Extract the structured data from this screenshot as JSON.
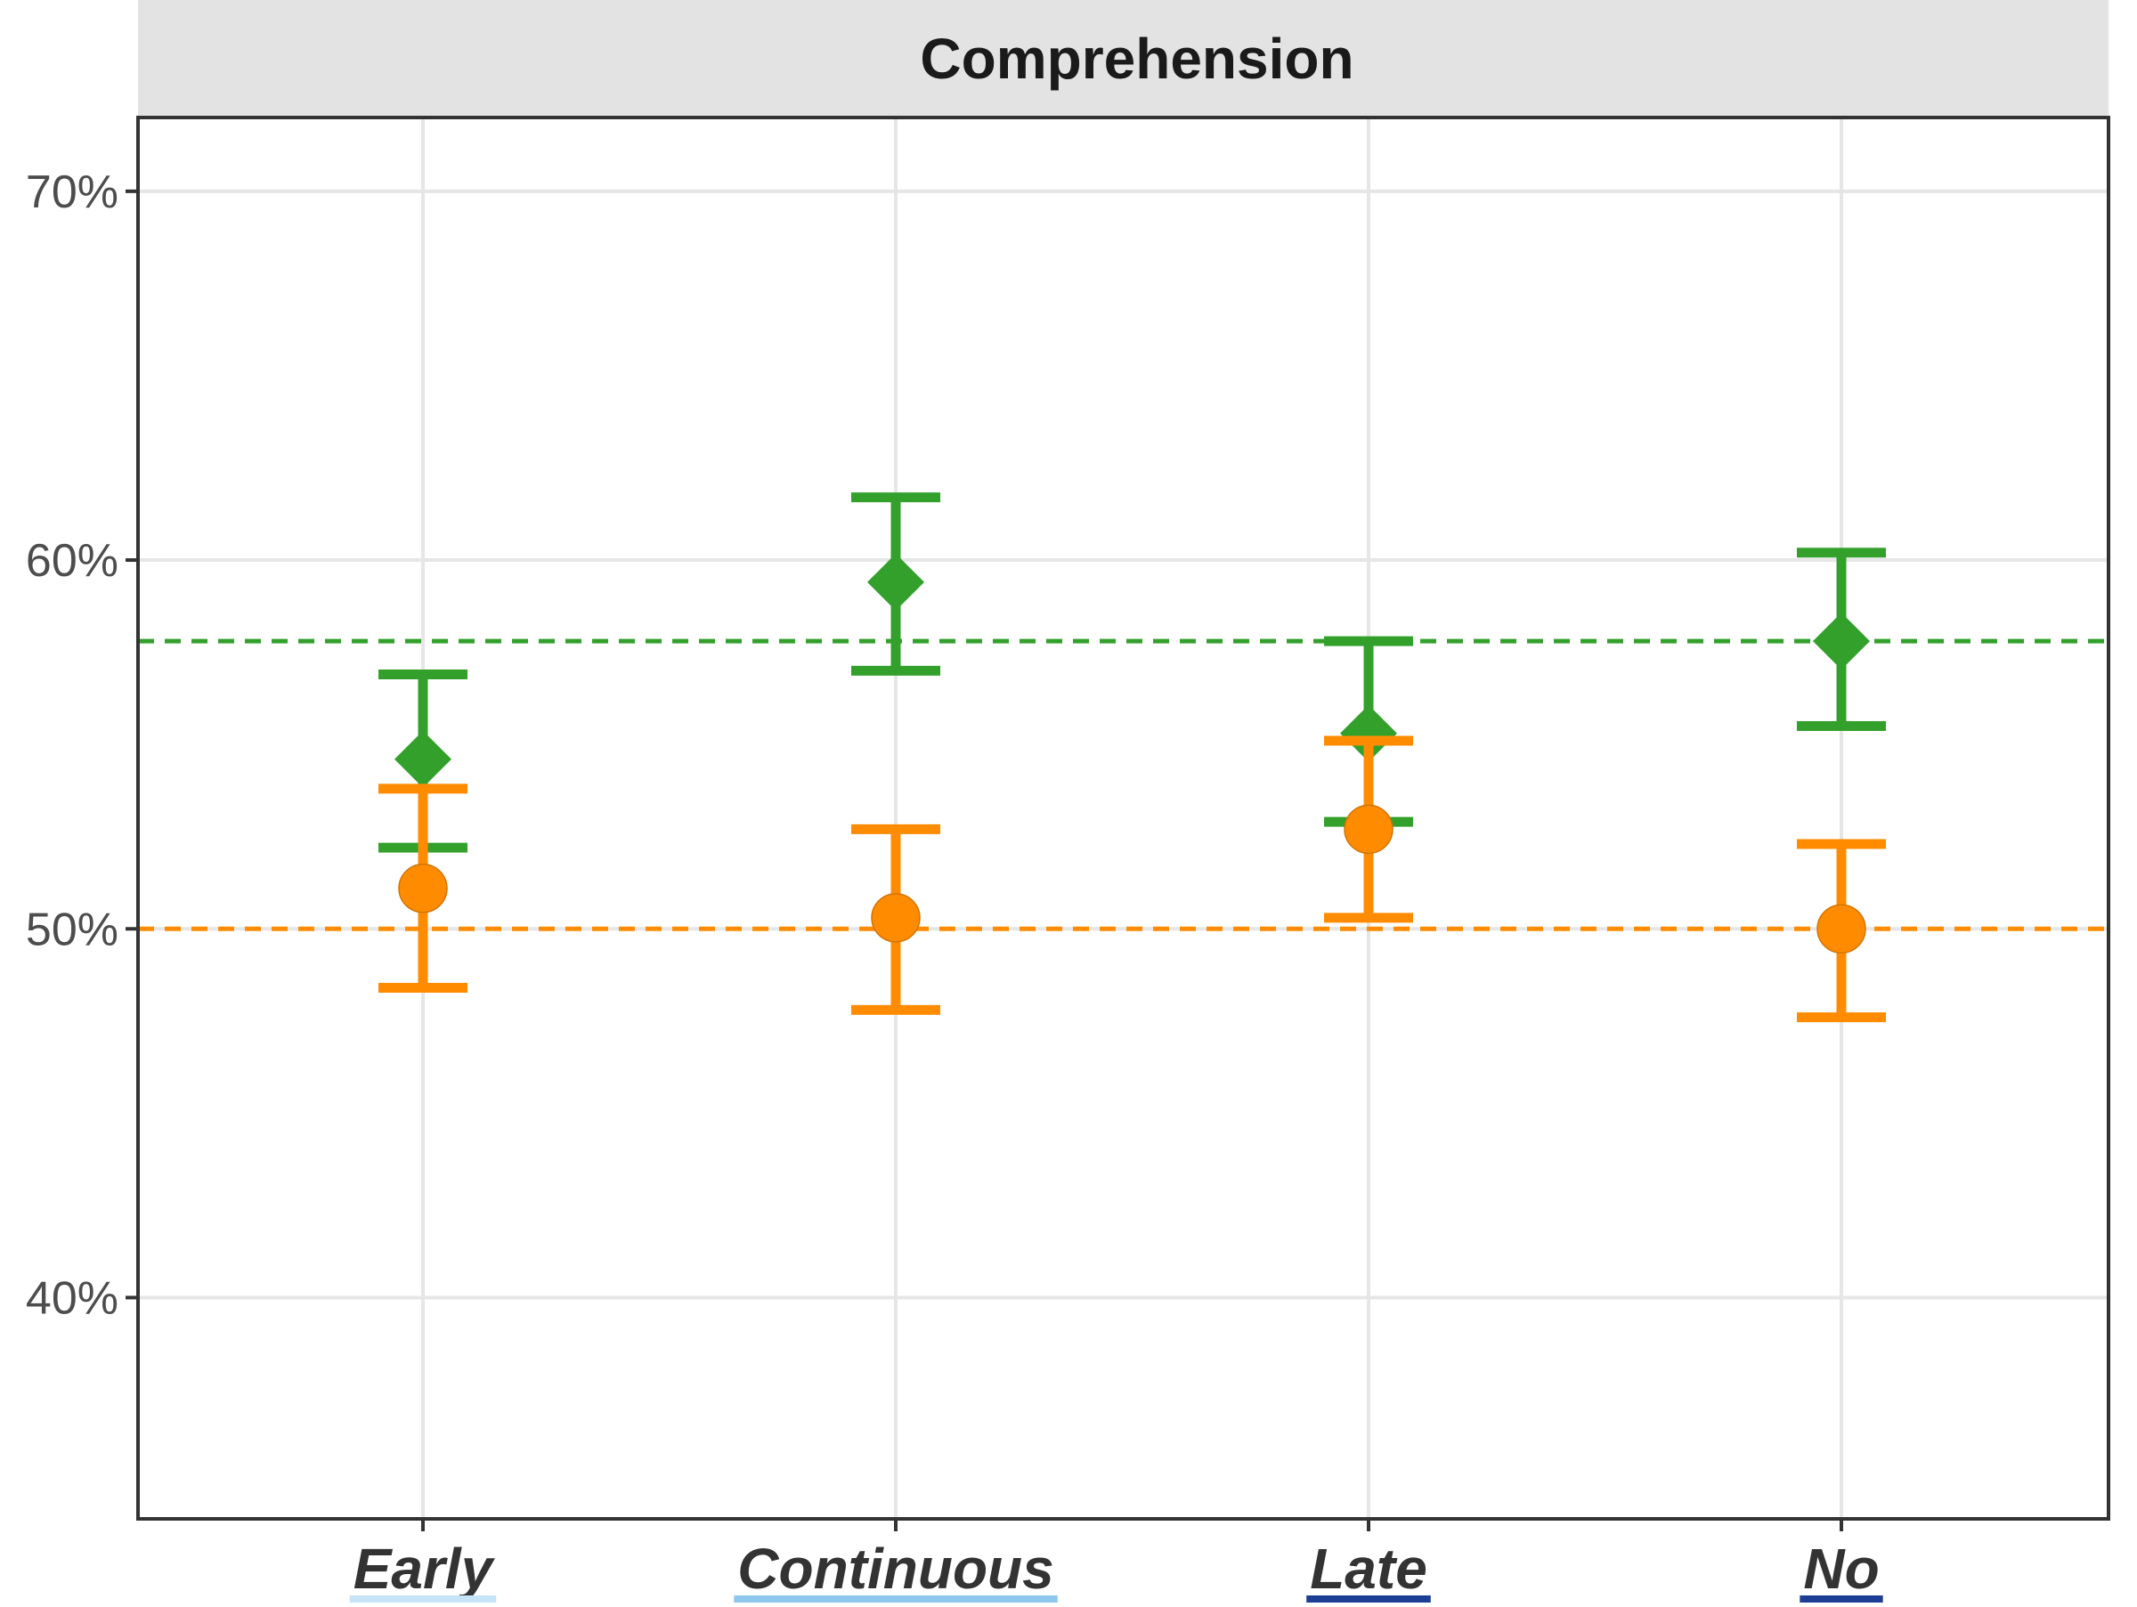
{
  "chart_data": {
    "type": "scatter",
    "title": "Comprehension",
    "categories": [
      "Early",
      "Continuous",
      "Late",
      "No"
    ],
    "category_underline_colors": [
      "#c6e3f7",
      "#8ec7ee",
      "#1c3f95",
      "#1c3f95"
    ],
    "ylim": [
      0.34,
      0.72
    ],
    "yticks": [
      0.4,
      0.5,
      0.6,
      0.7
    ],
    "ytick_labels": [
      "40%",
      "50%",
      "60%",
      "70%"
    ],
    "grid": true,
    "series": [
      {
        "color": "#33a02c",
        "marker": "diamond",
        "values": [
          0.546,
          0.594,
          0.553,
          0.578
        ],
        "lower": [
          0.522,
          0.57,
          0.529,
          0.555
        ],
        "upper": [
          0.569,
          0.617,
          0.578,
          0.602
        ],
        "reference_line": 0.578
      },
      {
        "color": "#ff8c00",
        "marker": "circle",
        "values": [
          0.511,
          0.503,
          0.527,
          0.5
        ],
        "lower": [
          0.484,
          0.478,
          0.503,
          0.476
        ],
        "upper": [
          0.538,
          0.527,
          0.551,
          0.523
        ],
        "reference_line": 0.5
      }
    ]
  }
}
